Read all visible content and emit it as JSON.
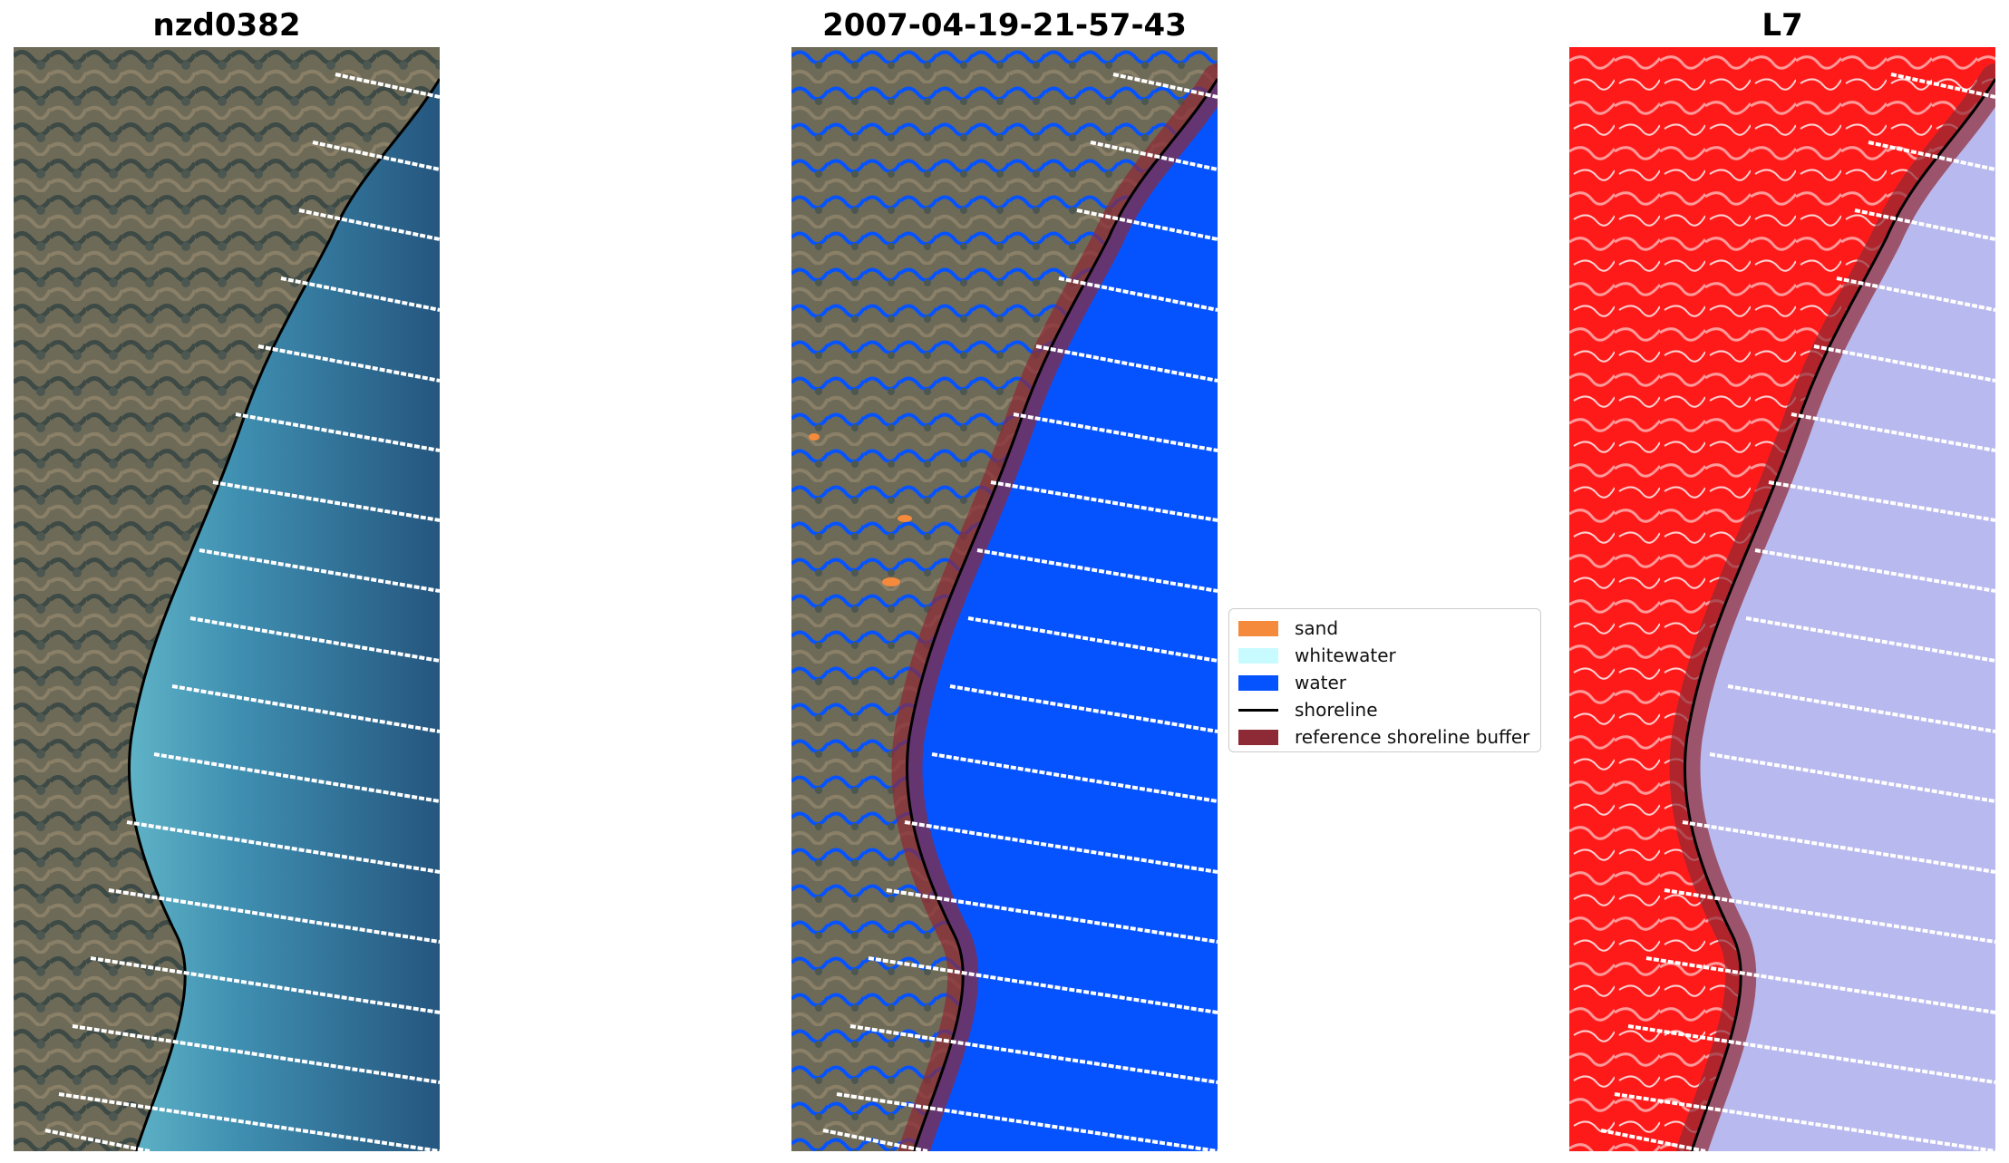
{
  "panels": [
    {
      "title": "nzd0382",
      "view": "rgb"
    },
    {
      "title": "2007-04-19-21-57-43",
      "view": "classified"
    },
    {
      "title": "L7",
      "view": "index"
    }
  ],
  "legend": {
    "items": [
      {
        "label": "sand",
        "kind": "patch",
        "color": "#f58a3c"
      },
      {
        "label": "whitewater",
        "kind": "patch",
        "color": "#c8fbff"
      },
      {
        "label": "water",
        "kind": "patch",
        "color": "#0553ff"
      },
      {
        "label": "shoreline",
        "kind": "line",
        "color": "#000000"
      },
      {
        "label": "reference shoreline buffer",
        "kind": "patch",
        "color": "#8e2a35"
      }
    ]
  },
  "colors": {
    "land_rgb": "#6f6b58",
    "sea_rgb": "#2d6d93",
    "shallow_rgb": "#4aa3bd",
    "water_class": "#0553ff",
    "index_land": "#ff1a1a",
    "index_sea": "#b8b9ee",
    "buffer": "#8e2a35",
    "transect": "#ffffff",
    "shoreline": "#000000"
  }
}
